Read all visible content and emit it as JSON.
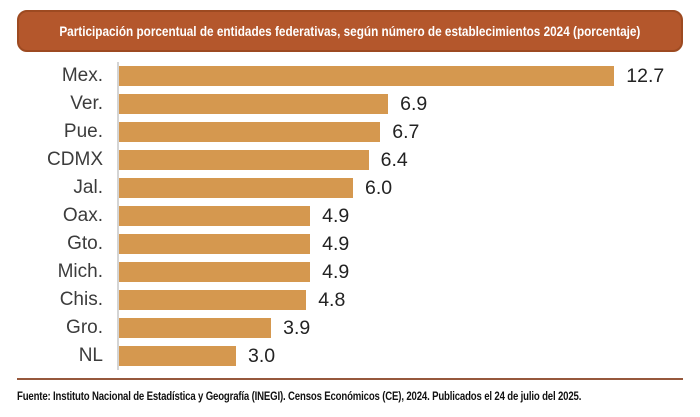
{
  "header": {
    "title": "Participación porcentual de entidades federativas, según número de establecimientos 2024 (porcentaje)"
  },
  "footer": {
    "source_text": "Fuente: Instituto Nacional de Estadística y Geografía (INEGI). Censos Económicos (CE), 2024. Publicados el 24 de julio del 2025."
  },
  "colors": {
    "title_bg": "#B4572C",
    "title_border": "#9D4A21",
    "bar": "#D5984F",
    "axis_line": "#D4D4D4",
    "divider": "#96583C"
  },
  "chart_data": {
    "type": "bar",
    "orientation": "horizontal",
    "title": "Participación porcentual de entidades federativas, según número de establecimientos 2024 (porcentaje)",
    "categories": [
      "Mex.",
      "Ver.",
      "Pue.",
      "CDMX",
      "Jal.",
      "Oax.",
      "Gto.",
      "Mich.",
      "Chis.",
      "Gro.",
      "NL"
    ],
    "values": [
      12.7,
      6.9,
      6.7,
      6.4,
      6.0,
      4.9,
      4.9,
      4.9,
      4.8,
      3.9,
      3.0
    ],
    "value_labels": [
      "12.7",
      "6.9",
      "6.7",
      "6.4",
      "6.0",
      "4.9",
      "4.9",
      "4.9",
      "4.8",
      "3.9",
      "3.0"
    ],
    "xlabel": "",
    "ylabel": "",
    "xlim": [
      0,
      13.9
    ],
    "grid": false,
    "legend": "none",
    "value_labels_position": "end-of-bar"
  }
}
